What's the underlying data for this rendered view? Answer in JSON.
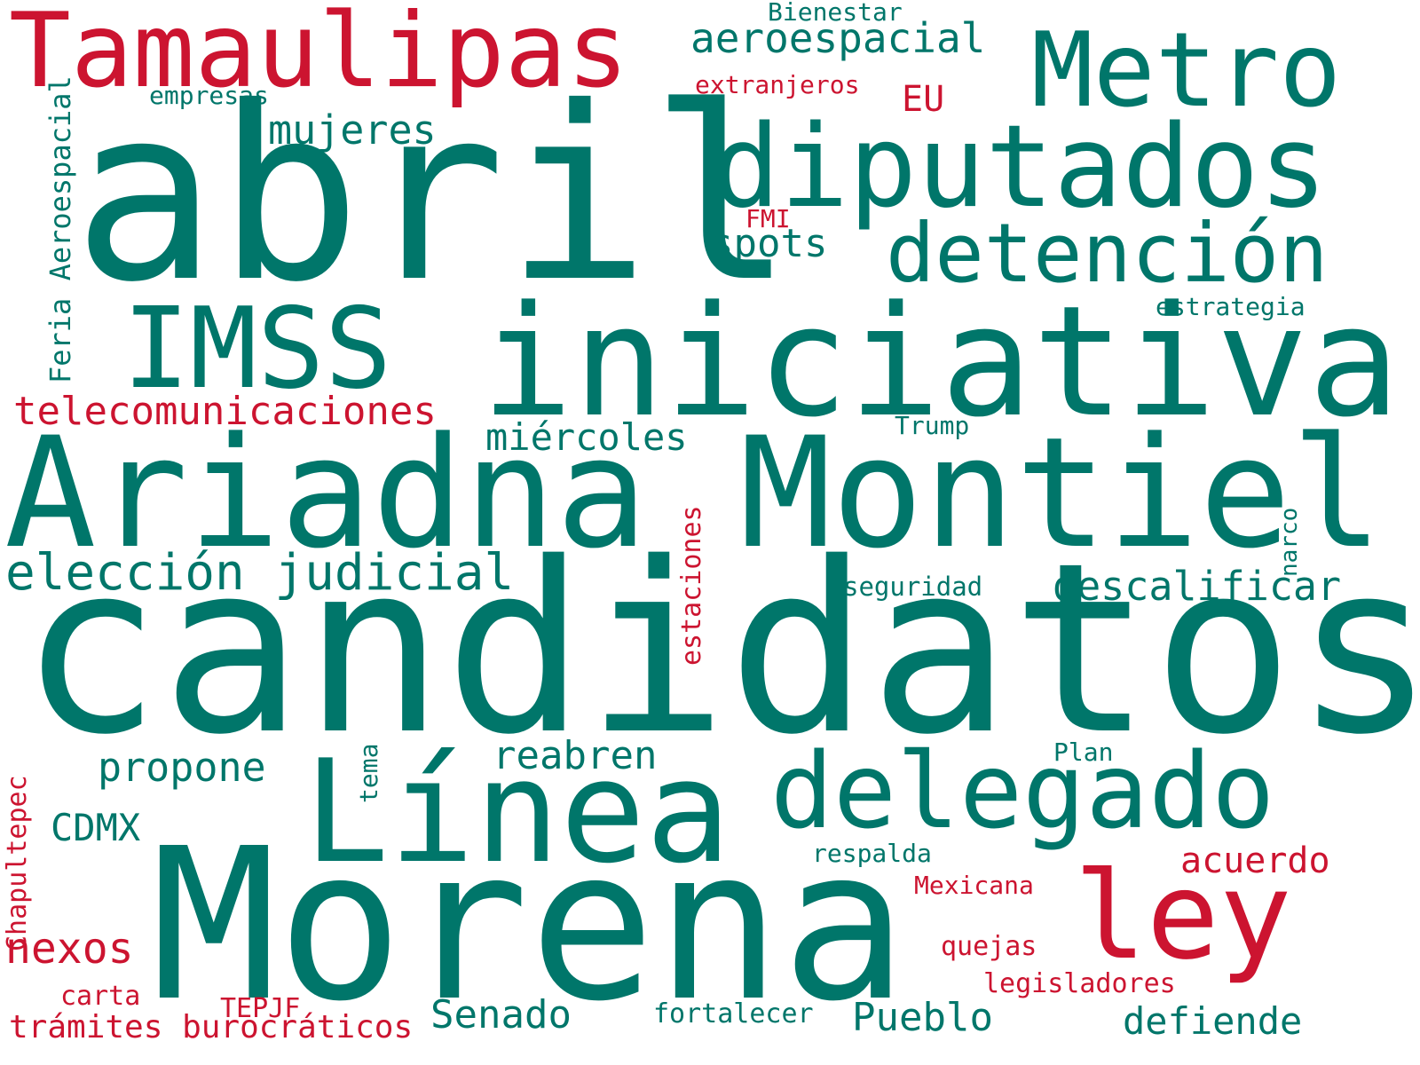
{
  "colors": {
    "green": "#00766a",
    "red": "#cc1430",
    "background": "#ffffff"
  },
  "words": {
    "candidatos": "candidatos",
    "abril": "abril",
    "morena": "Morena",
    "ariadna_montiel": "Ariadna Montiel",
    "iniciativa": "iniciativa",
    "diputados": "diputados",
    "linea": "Línea",
    "tamaulipas": "Tamaulipas",
    "metro": "Metro",
    "delegado": "delegado",
    "imss": "IMSS",
    "deteccion": "detención",
    "ley": "ley",
    "eleccion_judicial": "elección judicial",
    "telecomunicaciones": "telecomunicaciones",
    "aeroespacial": "aeroespacial",
    "descalificar": "descalificar",
    "mujeres": "mujeres",
    "miercoles": "miércoles",
    "spots": "spots",
    "propone": "propone",
    "reabren": "reabren",
    "acuerdo": "acuerdo",
    "cdmx": "CDMX",
    "nexos": "nexos",
    "senado": "Senado",
    "pueblo": "Pueblo",
    "defiende": "defiende",
    "tramites_burocraticos": "trámites burocráticos",
    "eu": "EU",
    "extranjeros": "extranjeros",
    "empresas": "empresas",
    "bienestar": "Bienestar",
    "fmi": "FMI",
    "estrategia": "estrategia",
    "trump": "Trump",
    "seguridad": "seguridad",
    "plan": "Plan",
    "respalda": "respalda",
    "mexicana": "Mexicana",
    "quejas": "quejas",
    "legisladores": "legisladores",
    "fortalecer": "fortalecer",
    "tepjf": "TEPJF",
    "carta": "carta",
    "feria_aeroespacial": "Feria Aeroespacial",
    "estaciones": "estaciones",
    "narco": "narco",
    "chapultepec": "Chapultepec",
    "tema": "tema"
  }
}
